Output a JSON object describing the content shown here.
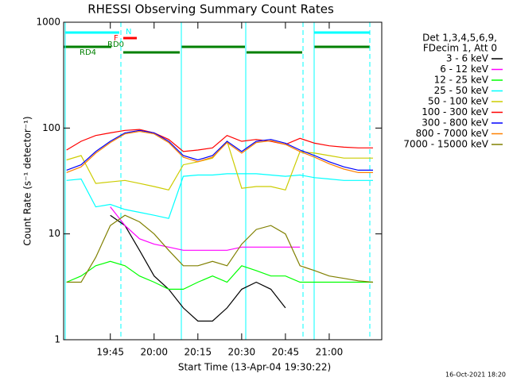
{
  "chart_data": {
    "type": "line",
    "title": "RHESSI Observing Summary Count Rates",
    "x_label": "Start Time (13-Apr-04 19:30:22)",
    "y_label": "Count Rate (s⁻¹ detector⁻¹)",
    "legend_header": [
      "Det 1,3,4,5,6,9,",
      "FDecim 1, Att 0"
    ],
    "footer": "16-Oct-2021 18:20",
    "annotations": [
      "N",
      "F",
      "RD0",
      "RD4"
    ],
    "log_y": true,
    "x": [
      "19:30",
      "19:35",
      "19:40",
      "19:45",
      "19:50",
      "19:55",
      "20:00",
      "20:05",
      "20:10",
      "20:15",
      "20:20",
      "20:25",
      "20:30",
      "20:35",
      "20:40",
      "20:45",
      "20:50",
      "20:55",
      "21:00",
      "21:05",
      "21:10",
      "21:15"
    ],
    "xlim": [
      "19:29",
      "21:18"
    ],
    "xticks": [
      "19:45",
      "20:00",
      "20:15",
      "20:30",
      "20:45",
      "21:00"
    ],
    "ylim": [
      1,
      1000
    ],
    "yticks": [
      1,
      10,
      100,
      1000
    ],
    "series": [
      {
        "name": "3 - 6 keV",
        "color": "#000000",
        "values": [
          null,
          null,
          null,
          15,
          12,
          7,
          4,
          3,
          2,
          1.5,
          1.5,
          2,
          3,
          3.5,
          3,
          2,
          null,
          null,
          null,
          null,
          null,
          null
        ]
      },
      {
        "name": "6 - 12 keV",
        "color": "#ff00ff",
        "values": [
          null,
          null,
          null,
          18,
          12,
          9,
          8,
          7.5,
          7,
          7,
          7,
          7,
          7.5,
          7.5,
          7.5,
          7.5,
          7.5,
          null,
          null,
          null,
          null,
          null
        ]
      },
      {
        "name": "12 - 25 keV",
        "color": "#00ff00",
        "values": [
          3.5,
          4,
          5,
          5.5,
          5,
          4,
          3.5,
          3,
          3,
          3.5,
          4,
          3.5,
          5,
          4.5,
          4,
          4,
          3.5,
          3.5,
          3.5,
          3.5,
          3.5,
          3.5
        ]
      },
      {
        "name": "25 - 50 keV",
        "color": "#00ffff",
        "values": [
          32,
          33,
          18,
          19,
          17,
          16,
          15,
          14,
          35,
          36,
          36,
          37,
          37,
          37,
          36,
          35,
          36,
          34,
          33,
          32,
          32,
          32
        ]
      },
      {
        "name": "50 - 100 keV",
        "color": "#cccc00",
        "values": [
          50,
          55,
          30,
          31,
          32,
          30,
          28,
          26,
          45,
          48,
          52,
          75,
          27,
          28,
          28,
          26,
          60,
          58,
          55,
          52,
          52,
          52
        ]
      },
      {
        "name": "100 - 300 keV",
        "color": "#ff0000",
        "values": [
          62,
          75,
          85,
          90,
          95,
          97,
          90,
          78,
          60,
          62,
          65,
          85,
          75,
          78,
          75,
          70,
          80,
          72,
          68,
          66,
          65,
          65
        ]
      },
      {
        "name": "300 - 800 keV",
        "color": "#0000ff",
        "values": [
          40,
          45,
          60,
          75,
          90,
          95,
          90,
          75,
          55,
          50,
          55,
          75,
          60,
          75,
          78,
          72,
          62,
          55,
          48,
          43,
          40,
          40
        ]
      },
      {
        "name": "800 - 7000 keV",
        "color": "#ff8000",
        "values": [
          38,
          43,
          58,
          73,
          88,
          93,
          88,
          73,
          53,
          48,
          53,
          73,
          58,
          73,
          76,
          70,
          60,
          53,
          46,
          41,
          38,
          38
        ]
      },
      {
        "name": "7000 - 15000 keV",
        "color": "#808000",
        "values": [
          3.5,
          3.5,
          6,
          12,
          15,
          13,
          10,
          7,
          5,
          5,
          5.5,
          5,
          8,
          11,
          12,
          10,
          5,
          4.5,
          4,
          3.8,
          3.6,
          3.5
        ]
      }
    ]
  }
}
